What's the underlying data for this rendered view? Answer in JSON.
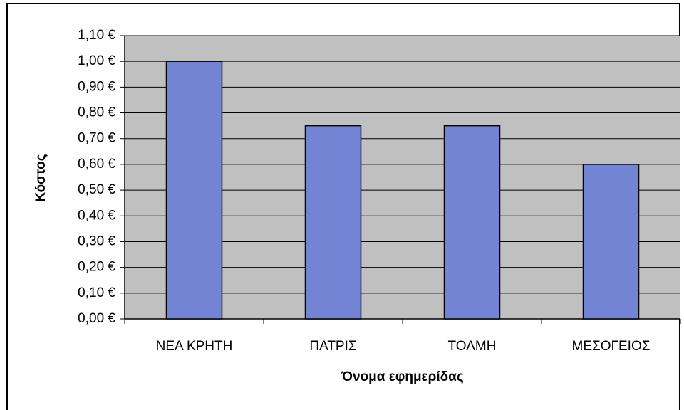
{
  "chart_data": {
    "type": "bar",
    "categories": [
      "ΝΕΑ ΚΡΗΤΗ",
      "ΠΑΤΡΙΣ",
      "ΤΟΛΜΗ",
      "ΜΕΣΟΓΕΙΟΣ"
    ],
    "values": [
      1.0,
      0.75,
      0.75,
      0.6
    ],
    "color": "#7484d4",
    "x_label": "Όνομα εφημερίδας",
    "y_label": "Κόστος",
    "ylim": [
      0,
      1.1
    ],
    "yticks": [
      {
        "value": 0,
        "label": "0,00 €"
      },
      {
        "value": 0.1,
        "label": "0,10 €"
      },
      {
        "value": 0.2,
        "label": "0,20 €"
      },
      {
        "value": 0.3,
        "label": "0,30 €"
      },
      {
        "value": 0.4,
        "label": "0,40 €"
      },
      {
        "value": 0.5,
        "label": "0,50 €"
      },
      {
        "value": 0.6,
        "label": "0,60 €"
      },
      {
        "value": 0.7,
        "label": "0,70 €"
      },
      {
        "value": 0.8,
        "label": "0,80 €"
      },
      {
        "value": 0.9,
        "label": "0,90 €"
      },
      {
        "value": 1.0,
        "label": "1,00 €"
      },
      {
        "value": 1.1,
        "label": "1,10 €"
      }
    ],
    "grid": true
  }
}
